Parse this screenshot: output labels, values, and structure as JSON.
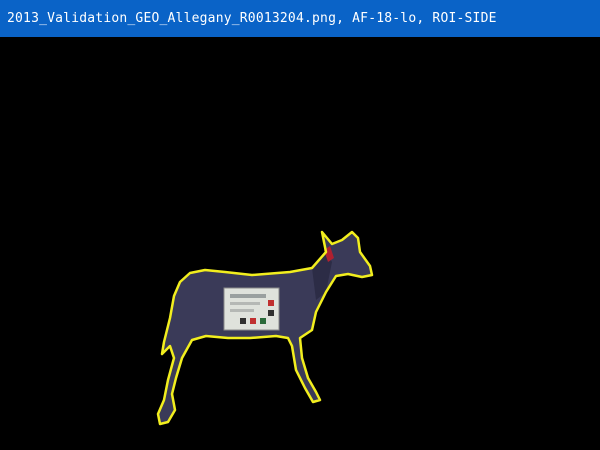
{
  "window": {
    "title": "2013_Validation_GEO_Allegany_R0013204.png, AF-18-lo, ROI-SIDE"
  },
  "image": {
    "subject": "deer-side-view",
    "roi_label": "ROI-SIDE"
  },
  "colors": {
    "title_bar": "#0a63c7",
    "title_text": "#ffffff",
    "background": "#000000",
    "roi_outline": "#f2ee1e",
    "animal_body": "#3a3a58",
    "collar": "#b02030",
    "tag_panel": "#dfe2dc"
  }
}
